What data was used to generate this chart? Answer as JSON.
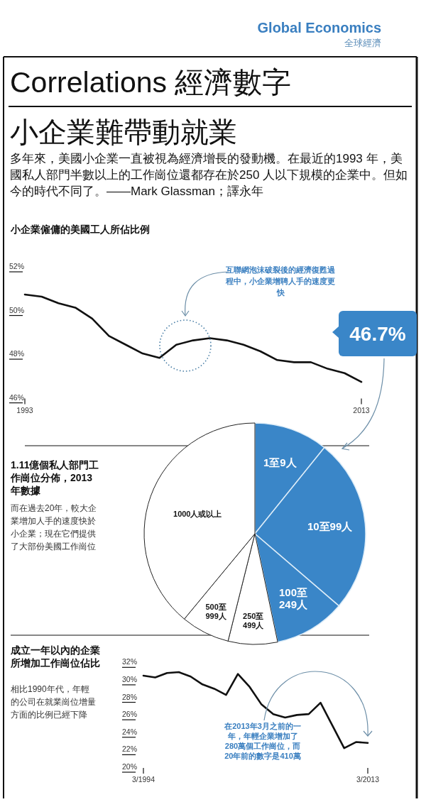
{
  "chart_data": [
    {
      "type": "other",
      "title": "Correlations 經濟數字",
      "subtitle": "小企業難帶動就業",
      "annotations": [
        "Global Economics",
        "全球經濟",
        "多年來，美國小企業一直被視為經濟增長的發動機。在最近的1993 年，美國私人部門半數以上的工作崗位還都存在於250 人以下規模的企業中。但如今的時代不同了。——Mark Glassman；譯永年"
      ]
    },
    {
      "type": "line",
      "title": "小企業僱傭的美國工人所佔比例",
      "x": [
        1993,
        1994,
        1995,
        1996,
        1997,
        1998,
        1999,
        2000,
        2001,
        2002,
        2003,
        2004,
        2005,
        2006,
        2007,
        2008,
        2009,
        2010,
        2011,
        2012,
        2013
      ],
      "series": [
        {
          "color": "#111111",
          "values": [
            50.7,
            50.6,
            50.3,
            50.1,
            49.6,
            48.8,
            48.4,
            48.0,
            47.8,
            48.4,
            48.6,
            48.7,
            48.6,
            48.4,
            48.1,
            47.7,
            47.6,
            47.6,
            47.3,
            47.1,
            46.7
          ],
          "value_labels": [
            null,
            null,
            null,
            null,
            null,
            null,
            null,
            null,
            null,
            null,
            null,
            null,
            null,
            null,
            null,
            null,
            null,
            null,
            null,
            null,
            "46.7%"
          ]
        }
      ],
      "xlim": [
        1993,
        2013
      ],
      "xticks": [
        1993,
        2013
      ],
      "ylim": [
        46,
        52
      ],
      "yticks": [
        {
          "value": 46,
          "label": "46%"
        },
        {
          "value": 48,
          "label": "48%"
        },
        {
          "value": 50,
          "label": "50%"
        },
        {
          "value": 52,
          "label": "52%"
        }
      ],
      "annotations": [
        "互聯網泡沫破裂後的經濟復甦過程中，小企業增聘人手的速度更快"
      ]
    },
    {
      "type": "pie",
      "title": "1.11億個私人部門工作崗位分佈，2013年數據",
      "subtitle": "而在過去20年，較大企業增加人手的速度快於小企業；現在它們提供了大部份美國工作崗位",
      "categories": [
        "1至9人",
        "10至99人",
        "100至249人",
        "250至499人",
        "500至999人",
        "1000人或以上"
      ],
      "values": [
        10.8,
        25.5,
        10.4,
        7.2,
        7.1,
        39.0
      ],
      "colors": [
        "#3a86c8",
        "#3a86c8",
        "#3a86c8",
        "#ffffff",
        "#ffffff",
        "#ffffff"
      ]
    },
    {
      "type": "line",
      "title": "成立一年以內的企業所增加工作崗位佔比",
      "subtitle": "相比1990年代，年輕的公司在就業崗位增量方面的比例已經下降",
      "categories": [
        "3/1994",
        null,
        null,
        null,
        null,
        null,
        null,
        null,
        null,
        null,
        null,
        null,
        null,
        null,
        null,
        null,
        null,
        null,
        null,
        "3/2013"
      ],
      "series": [
        {
          "color": "#111111",
          "values": [
            30.4,
            30.2,
            30.7,
            30.8,
            30.3,
            29.4,
            28.9,
            28.2,
            30.6,
            29.1,
            27.1,
            26.0,
            25.6,
            25.9,
            26.0,
            27.3,
            24.7,
            22.1,
            22.8,
            22.7
          ]
        }
      ],
      "ylim": [
        20,
        32
      ],
      "yticks": [
        {
          "value": 20,
          "label": "20%"
        },
        {
          "value": 22,
          "label": "22%"
        },
        {
          "value": 24,
          "label": "24%"
        },
        {
          "value": 26,
          "label": "26%"
        },
        {
          "value": 28,
          "label": "28%"
        },
        {
          "value": 30,
          "label": "30%"
        },
        {
          "value": 32,
          "label": "32%"
        }
      ],
      "annotations": [
        "在2013年3月之前的一年，年輕企業增加了280萬個工作崗位，而20年前的數字是410萬"
      ]
    }
  ]
}
